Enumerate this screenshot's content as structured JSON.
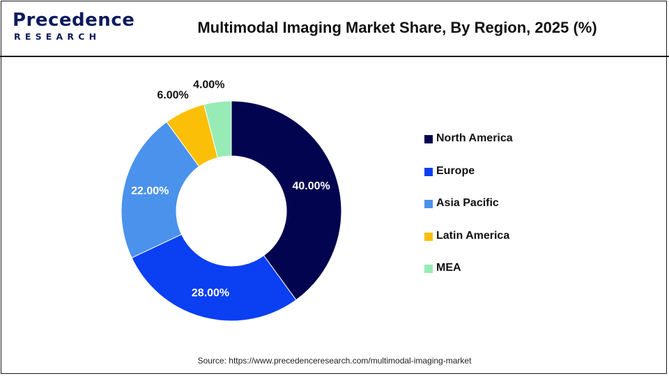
{
  "header": {
    "logo_top": "Precedence",
    "logo_bottom": "RESEARCH",
    "title": "Multimodal Imaging Market Share, By Region, 2025 (%)"
  },
  "chart_data": {
    "type": "pie",
    "variant": "donut",
    "title": "Multimodal Imaging Market Share, By Region, 2025 (%)",
    "categories": [
      "North America",
      "Europe",
      "Asia Pacific",
      "Latin America",
      "MEA"
    ],
    "values": [
      40,
      28,
      22,
      6,
      4
    ],
    "data_labels": [
      "40.00%",
      "28.00%",
      "22.00%",
      "6.00%",
      "4.00%"
    ],
    "colors": [
      "#03044f",
      "#0a3ff2",
      "#4a92ec",
      "#fcbf08",
      "#97ecb6"
    ],
    "label_colors": [
      "#ffffff",
      "#ffffff",
      "#ffffff",
      "#111111",
      "#111111"
    ],
    "label_placement": [
      "inside",
      "inside",
      "inside",
      "outside",
      "outside"
    ],
    "start_angle_deg": 0,
    "direction": "clockwise",
    "legend_position": "right"
  },
  "source": "Source: https://www.precedenceresearch.com/multimodal-imaging-market"
}
